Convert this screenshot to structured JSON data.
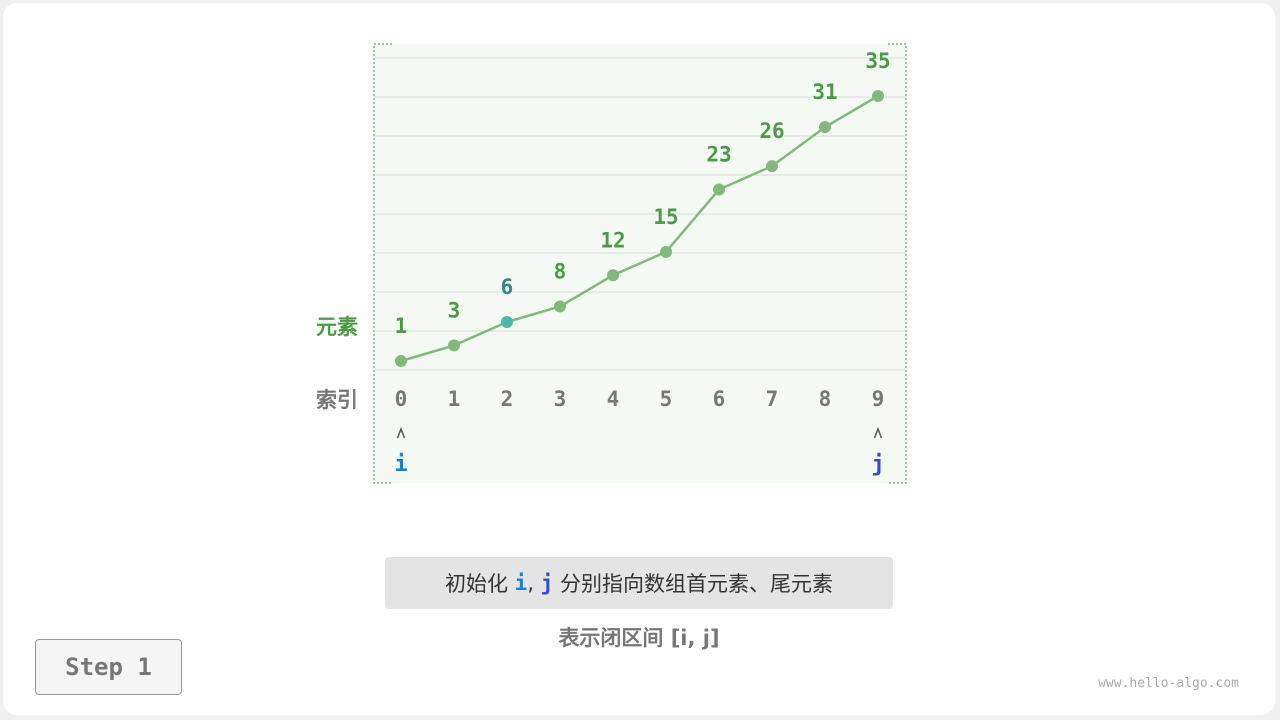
{
  "diagram": {
    "row_labels": {
      "elements": "元素",
      "indices": "索引"
    },
    "array": [
      1,
      3,
      6,
      8,
      12,
      15,
      23,
      26,
      31,
      35
    ],
    "highlight_index": 2,
    "pointers": [
      {
        "name": "i",
        "index": 0,
        "color": "#1a7fd4"
      },
      {
        "name": "j",
        "index": 9,
        "color": "#2a4fd4"
      }
    ],
    "colors": {
      "line": "#80b97a",
      "label": "#4a9a46",
      "highlight": "#4bb8a9",
      "highlight_label": "#2f8a80",
      "index": "#777777",
      "frame": "#5aa856",
      "background": "#f4f9f4"
    }
  },
  "caption": {
    "prefix": "初始化 ",
    "i": "i",
    "sep": ", ",
    "j": "j",
    "suffix": " 分别指向数组首元素、尾元素"
  },
  "subcaption": "表示闭区间 [i, j]",
  "step_label": "Step 1",
  "watermark": "www.hello-algo.com"
}
